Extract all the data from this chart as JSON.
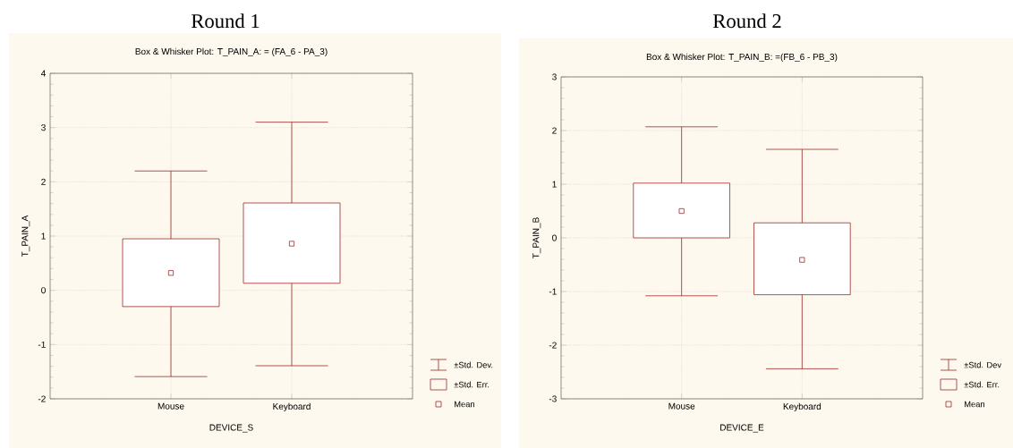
{
  "chart_data": [
    {
      "type": "box",
      "title": "Round 1",
      "subtitle": "Box & Whisker Plot: T_PAIN_A: = (FA_6 - PA_3)",
      "xlabel": "DEVICE_S",
      "ylabel": "T_PAIN_A",
      "categories": [
        "Mouse",
        "Keyboard"
      ],
      "color": "#a0282a",
      "boxes": [
        {
          "low": -1.59,
          "q1": -0.3,
          "mean": 0.32,
          "q3": 0.95,
          "high": 2.2
        },
        {
          "low": -1.39,
          "q1": 0.13,
          "mean": 0.86,
          "q3": 1.61,
          "high": 3.1
        }
      ],
      "ylim": [
        -2,
        4
      ],
      "yticks": [
        -2,
        -1,
        0,
        1,
        2,
        3,
        4
      ],
      "grid": true,
      "annotations": [
        "±Std. Dev.",
        "±Std. Err.",
        "Mean"
      ]
    },
    {
      "type": "box",
      "title": "Round 2",
      "subtitle": "Box & Whisker Plot: T_PAIN_B: =(FB_6 - PB_3)",
      "xlabel": "DEVICE_E",
      "ylabel": "T_PAIN_B",
      "categories": [
        "Mouse",
        "Keyboard"
      ],
      "color": "#a0282a",
      "boxes": [
        {
          "low": -1.08,
          "q1": 0.0,
          "mean": 0.5,
          "q3": 1.02,
          "high": 2.07
        },
        {
          "low": -2.44,
          "q1": -1.06,
          "mean": -0.41,
          "q3": 0.28,
          "high": 1.65
        }
      ],
      "ylim": [
        -3,
        3
      ],
      "yticks": [
        -3,
        -2,
        -1,
        0,
        1,
        2,
        3
      ],
      "grid": true,
      "annotations": [
        "±Std. Dev",
        "±Std. Err.",
        "Mean"
      ]
    }
  ]
}
